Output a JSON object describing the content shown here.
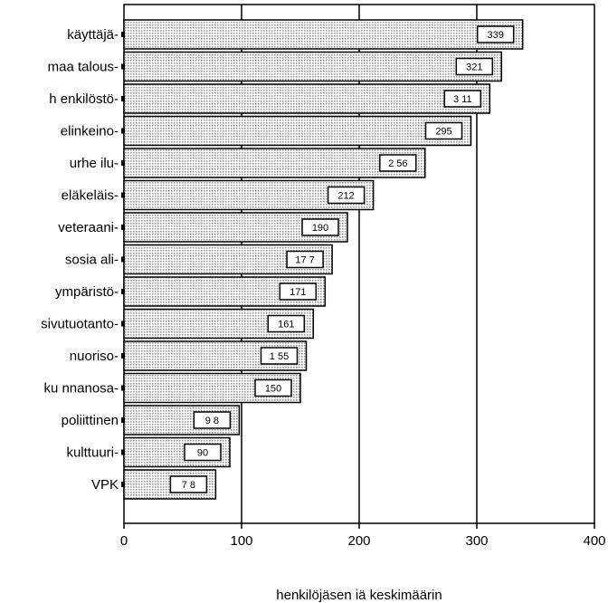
{
  "chart_data": {
    "type": "bar",
    "orientation": "horizontal",
    "categories": [
      "käyttäjä-",
      "maa talous-",
      "h enkilöstö-",
      "elinkeino-",
      "urhe ilu-",
      "eläkeläis-",
      "veteraani-",
      "sosia ali-",
      "ympäristö-",
      "sivutuotanto-",
      "nuoriso-",
      "ku nnanosa-",
      "poliittinen",
      "kulttuuri-",
      "VPK"
    ],
    "values": [
      339,
      321,
      311,
      295,
      256,
      212,
      190,
      177,
      171,
      161,
      155,
      150,
      98,
      90,
      78
    ],
    "value_labels": [
      "339",
      "321",
      "3 11",
      "295",
      "2 56",
      "212",
      "190",
      "17 7",
      "171",
      "161",
      "1 55",
      "150",
      "9 8",
      "90",
      "7 8"
    ],
    "xlim": [
      0,
      400
    ],
    "xticks": [
      0,
      100,
      200,
      300,
      400
    ],
    "xlabel": "henkilöjäsen iä keskimäärin",
    "grid": "vertical",
    "bar_fill": "dotted light gray",
    "colors": {
      "bar_fill": "#dcdcdc",
      "bar_stroke": "#000000",
      "grid": "#000000"
    }
  }
}
